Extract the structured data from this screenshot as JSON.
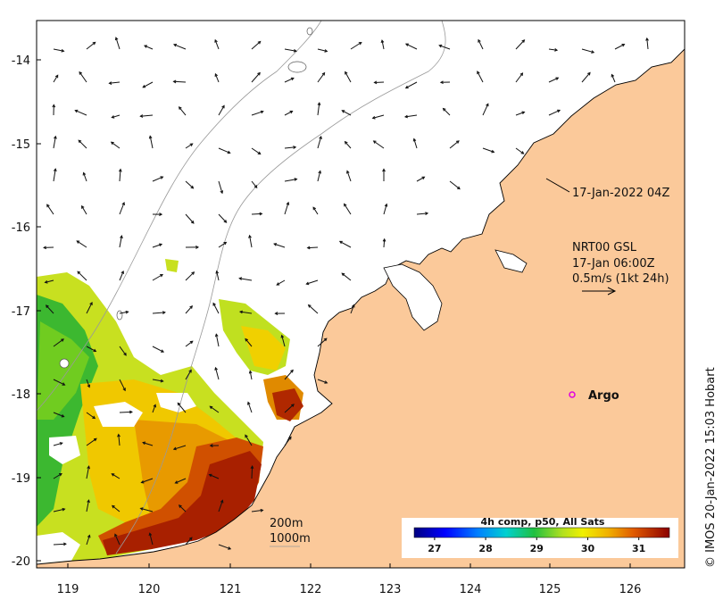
{
  "map": {
    "lon_ticks": [
      "119",
      "120",
      "121",
      "122",
      "123",
      "124",
      "125",
      "126"
    ],
    "lat_ticks": [
      "-14",
      "-15",
      "-16",
      "-17",
      "-18",
      "-19",
      "-20"
    ],
    "lon_range": [
      118.6,
      126.7
    ],
    "lat_range": [
      -20.1,
      -13.55
    ]
  },
  "annotations": {
    "timestamp": "17-Jan-2022 04Z",
    "current_line1": "NRT00 GSL",
    "current_line2": "17-Jan 06:00Z",
    "current_line3": "0.5m/s (1kt 24h)",
    "argo_label": "Argo",
    "contour_200": "200m",
    "contour_1000": "1000m",
    "credit": "© IMOS 20-Jan-2022 15:03 Hobart"
  },
  "colorbar": {
    "title": "4h comp, p50, All Sats",
    "ticks": [
      "27",
      "28",
      "29",
      "30",
      "31"
    ],
    "range": [
      26.6,
      31.6
    ]
  },
  "colors": {
    "land": "#fbc99a",
    "argo": "#e000e0",
    "sst_cold": "#000080",
    "sst_hot": "#8b0000"
  }
}
